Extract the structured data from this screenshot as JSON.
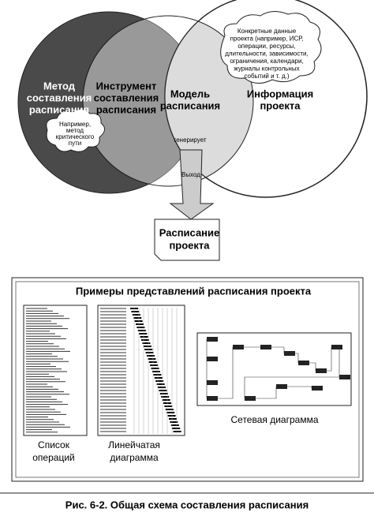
{
  "diagram": {
    "method": {
      "label": [
        "Метод",
        "составления",
        "расписания"
      ],
      "example": [
        "Например,",
        "метод",
        "критического",
        "пути"
      ]
    },
    "tool": {
      "label": [
        "Инструмент",
        "составления",
        "расписания"
      ]
    },
    "model": {
      "label": [
        "Модель",
        "расписания"
      ],
      "generates": "генерирует",
      "output": "Выход"
    },
    "info": {
      "label": [
        "Информация",
        "проекта"
      ],
      "details": [
        "Конкретные данные",
        "проекта (например, ИСР,",
        "операции, ресурсы,",
        "длительности, зависимости,",
        "ограничения, календари,",
        "журналы контрольных",
        "событий и т. д.)"
      ]
    },
    "schedule": {
      "label": [
        "Расписание",
        "проекта"
      ]
    }
  },
  "examples": {
    "title": "Примеры представлений расписания проекта",
    "items": [
      [
        "Список",
        "операций"
      ],
      [
        "Линейчатая",
        "диаграмма"
      ],
      [
        "Сетевая диаграмма"
      ]
    ]
  },
  "caption": "Рис. 6-2. Общая схема составления расписания"
}
